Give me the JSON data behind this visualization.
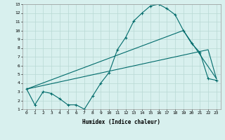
{
  "xlabel": "Humidex (Indice chaleur)",
  "bg_color": "#d8f0ee",
  "grid_color": "#b8d8d4",
  "line_color": "#006b6b",
  "xlim": [
    -0.5,
    23.5
  ],
  "ylim": [
    1,
    13
  ],
  "xticks": [
    0,
    1,
    2,
    3,
    4,
    5,
    6,
    7,
    8,
    9,
    10,
    11,
    12,
    13,
    14,
    15,
    16,
    17,
    18,
    19,
    20,
    21,
    22,
    23
  ],
  "yticks": [
    1,
    2,
    3,
    4,
    5,
    6,
    7,
    8,
    9,
    10,
    11,
    12,
    13
  ],
  "line1_x": [
    0,
    1,
    2,
    3,
    4,
    5,
    6,
    7,
    8,
    9,
    10,
    11,
    12,
    13,
    14,
    15,
    16,
    17,
    18,
    19,
    20,
    21,
    22,
    23
  ],
  "line1_y": [
    3.3,
    1.5,
    3.0,
    2.8,
    2.2,
    1.5,
    1.5,
    1.0,
    2.5,
    4.0,
    5.2,
    7.8,
    9.2,
    11.1,
    12.0,
    12.8,
    13.0,
    12.5,
    11.8,
    10.0,
    8.5,
    7.5,
    4.5,
    4.3
  ],
  "line2_x": [
    0,
    19,
    23
  ],
  "line2_y": [
    3.3,
    10.0,
    4.5
  ],
  "line3_x": [
    0,
    22,
    23
  ],
  "line3_y": [
    3.3,
    7.8,
    4.5
  ]
}
